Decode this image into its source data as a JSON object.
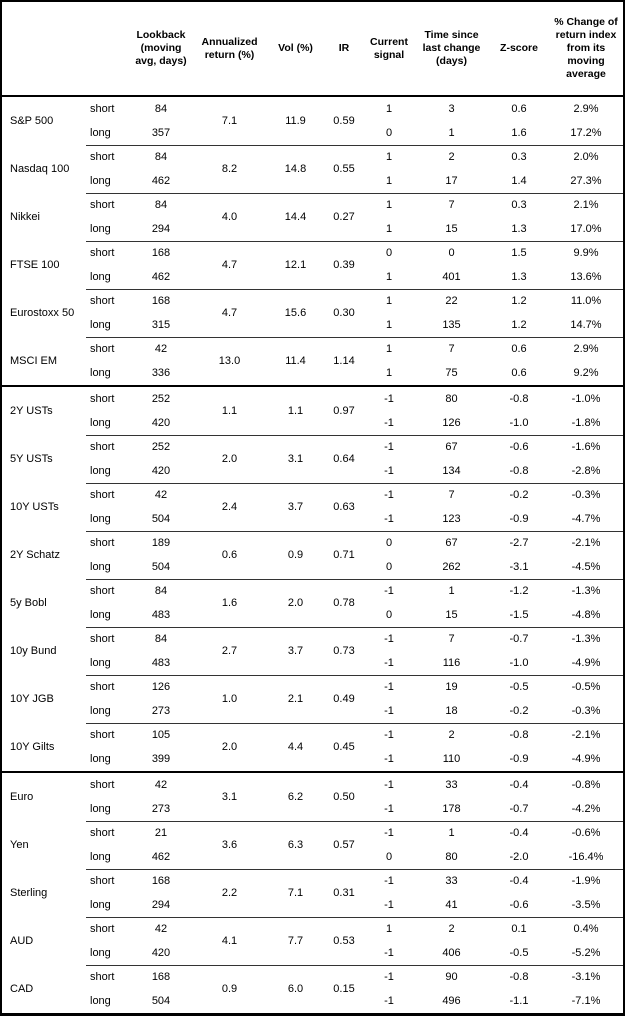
{
  "colors": {
    "border": "#000000",
    "text": "#000000",
    "background": "#ffffff"
  },
  "table": {
    "columns": [
      "",
      "",
      "Lookback (moving avg, days)",
      "Annualized return (%)",
      "Vol (%)",
      "IR",
      "Current signal",
      "Time since last change (days)",
      "Z-score",
      "% Change of return index from its moving average"
    ],
    "row_labels": [
      "short",
      "long"
    ],
    "sections": [
      {
        "id": "equities",
        "groups": [
          {
            "asset": "S&P 500",
            "annualized": "7.1",
            "vol": "11.9",
            "ir": "0.59",
            "rows": [
              {
                "horizon": "short",
                "lookback": "84",
                "signal": "1",
                "time": "3",
                "zscore": "0.6",
                "pct": "2.9%"
              },
              {
                "horizon": "long",
                "lookback": "357",
                "signal": "0",
                "time": "1",
                "zscore": "1.6",
                "pct": "17.2%"
              }
            ]
          },
          {
            "asset": "Nasdaq 100",
            "annualized": "8.2",
            "vol": "14.8",
            "ir": "0.55",
            "rows": [
              {
                "horizon": "short",
                "lookback": "84",
                "signal": "1",
                "time": "2",
                "zscore": "0.3",
                "pct": "2.0%"
              },
              {
                "horizon": "long",
                "lookback": "462",
                "signal": "1",
                "time": "17",
                "zscore": "1.4",
                "pct": "27.3%"
              }
            ]
          },
          {
            "asset": "Nikkei",
            "annualized": "4.0",
            "vol": "14.4",
            "ir": "0.27",
            "rows": [
              {
                "horizon": "short",
                "lookback": "84",
                "signal": "1",
                "time": "7",
                "zscore": "0.3",
                "pct": "2.1%"
              },
              {
                "horizon": "long",
                "lookback": "294",
                "signal": "1",
                "time": "15",
                "zscore": "1.3",
                "pct": "17.0%"
              }
            ]
          },
          {
            "asset": "FTSE 100",
            "annualized": "4.7",
            "vol": "12.1",
            "ir": "0.39",
            "rows": [
              {
                "horizon": "short",
                "lookback": "168",
                "signal": "0",
                "time": "0",
                "zscore": "1.5",
                "pct": "9.9%"
              },
              {
                "horizon": "long",
                "lookback": "462",
                "signal": "1",
                "time": "401",
                "zscore": "1.3",
                "pct": "13.6%"
              }
            ]
          },
          {
            "asset": "Eurostoxx 50",
            "annualized": "4.7",
            "vol": "15.6",
            "ir": "0.30",
            "rows": [
              {
                "horizon": "short",
                "lookback": "168",
                "signal": "1",
                "time": "22",
                "zscore": "1.2",
                "pct": "11.0%"
              },
              {
                "horizon": "long",
                "lookback": "315",
                "signal": "1",
                "time": "135",
                "zscore": "1.2",
                "pct": "14.7%"
              }
            ]
          },
          {
            "asset": "MSCI EM",
            "annualized": "13.0",
            "vol": "11.4",
            "ir": "1.14",
            "rows": [
              {
                "horizon": "short",
                "lookback": "42",
                "signal": "1",
                "time": "7",
                "zscore": "0.6",
                "pct": "2.9%"
              },
              {
                "horizon": "long",
                "lookback": "336",
                "signal": "1",
                "time": "75",
                "zscore": "0.6",
                "pct": "9.2%"
              }
            ]
          }
        ]
      },
      {
        "id": "bonds",
        "groups": [
          {
            "asset": "2Y USTs",
            "annualized": "1.1",
            "vol": "1.1",
            "ir": "0.97",
            "rows": [
              {
                "horizon": "short",
                "lookback": "252",
                "signal": "-1",
                "time": "80",
                "zscore": "-0.8",
                "pct": "-1.0%"
              },
              {
                "horizon": "long",
                "lookback": "420",
                "signal": "-1",
                "time": "126",
                "zscore": "-1.0",
                "pct": "-1.8%"
              }
            ]
          },
          {
            "asset": "5Y USTs",
            "annualized": "2.0",
            "vol": "3.1",
            "ir": "0.64",
            "rows": [
              {
                "horizon": "short",
                "lookback": "252",
                "signal": "-1",
                "time": "67",
                "zscore": "-0.6",
                "pct": "-1.6%"
              },
              {
                "horizon": "long",
                "lookback": "420",
                "signal": "-1",
                "time": "134",
                "zscore": "-0.8",
                "pct": "-2.8%"
              }
            ]
          },
          {
            "asset": "10Y USTs",
            "annualized": "2.4",
            "vol": "3.7",
            "ir": "0.63",
            "rows": [
              {
                "horizon": "short",
                "lookback": "42",
                "signal": "-1",
                "time": "7",
                "zscore": "-0.2",
                "pct": "-0.3%"
              },
              {
                "horizon": "long",
                "lookback": "504",
                "signal": "-1",
                "time": "123",
                "zscore": "-0.9",
                "pct": "-4.7%"
              }
            ]
          },
          {
            "asset": "2Y Schatz",
            "annualized": "0.6",
            "vol": "0.9",
            "ir": "0.71",
            "rows": [
              {
                "horizon": "short",
                "lookback": "189",
                "signal": "0",
                "time": "67",
                "zscore": "-2.7",
                "pct": "-2.1%"
              },
              {
                "horizon": "long",
                "lookback": "504",
                "signal": "0",
                "time": "262",
                "zscore": "-3.1",
                "pct": "-4.5%"
              }
            ]
          },
          {
            "asset": "5y Bobl",
            "annualized": "1.6",
            "vol": "2.0",
            "ir": "0.78",
            "rows": [
              {
                "horizon": "short",
                "lookback": "84",
                "signal": "-1",
                "time": "1",
                "zscore": "-1.2",
                "pct": "-1.3%"
              },
              {
                "horizon": "long",
                "lookback": "483",
                "signal": "0",
                "time": "15",
                "zscore": "-1.5",
                "pct": "-4.8%"
              }
            ]
          },
          {
            "asset": "10y Bund",
            "annualized": "2.7",
            "vol": "3.7",
            "ir": "0.73",
            "rows": [
              {
                "horizon": "short",
                "lookback": "84",
                "signal": "-1",
                "time": "7",
                "zscore": "-0.7",
                "pct": "-1.3%"
              },
              {
                "horizon": "long",
                "lookback": "483",
                "signal": "-1",
                "time": "116",
                "zscore": "-1.0",
                "pct": "-4.9%"
              }
            ]
          },
          {
            "asset": "10Y JGB",
            "annualized": "1.0",
            "vol": "2.1",
            "ir": "0.49",
            "rows": [
              {
                "horizon": "short",
                "lookback": "126",
                "signal": "-1",
                "time": "19",
                "zscore": "-0.5",
                "pct": "-0.5%"
              },
              {
                "horizon": "long",
                "lookback": "273",
                "signal": "-1",
                "time": "18",
                "zscore": "-0.2",
                "pct": "-0.3%"
              }
            ]
          },
          {
            "asset": "10Y Gilts",
            "annualized": "2.0",
            "vol": "4.4",
            "ir": "0.45",
            "rows": [
              {
                "horizon": "short",
                "lookback": "105",
                "signal": "-1",
                "time": "2",
                "zscore": "-0.8",
                "pct": "-2.1%"
              },
              {
                "horizon": "long",
                "lookback": "399",
                "signal": "-1",
                "time": "110",
                "zscore": "-0.9",
                "pct": "-4.9%"
              }
            ]
          }
        ]
      },
      {
        "id": "fx",
        "groups": [
          {
            "asset": "Euro",
            "annualized": "3.1",
            "vol": "6.2",
            "ir": "0.50",
            "rows": [
              {
                "horizon": "short",
                "lookback": "42",
                "signal": "-1",
                "time": "33",
                "zscore": "-0.4",
                "pct": "-0.8%"
              },
              {
                "horizon": "long",
                "lookback": "273",
                "signal": "-1",
                "time": "178",
                "zscore": "-0.7",
                "pct": "-4.2%"
              }
            ]
          },
          {
            "asset": "Yen",
            "annualized": "3.6",
            "vol": "6.3",
            "ir": "0.57",
            "rows": [
              {
                "horizon": "short",
                "lookback": "21",
                "signal": "-1",
                "time": "1",
                "zscore": "-0.4",
                "pct": "-0.6%"
              },
              {
                "horizon": "long",
                "lookback": "462",
                "signal": "0",
                "time": "80",
                "zscore": "-2.0",
                "pct": "-16.4%"
              }
            ]
          },
          {
            "asset": "Sterling",
            "annualized": "2.2",
            "vol": "7.1",
            "ir": "0.31",
            "rows": [
              {
                "horizon": "short",
                "lookback": "168",
                "signal": "-1",
                "time": "33",
                "zscore": "-0.4",
                "pct": "-1.9%"
              },
              {
                "horizon": "long",
                "lookback": "294",
                "signal": "-1",
                "time": "41",
                "zscore": "-0.6",
                "pct": "-3.5%"
              }
            ]
          },
          {
            "asset": "AUD",
            "annualized": "4.1",
            "vol": "7.7",
            "ir": "0.53",
            "rows": [
              {
                "horizon": "short",
                "lookback": "42",
                "signal": "1",
                "time": "2",
                "zscore": "0.1",
                "pct": "0.4%"
              },
              {
                "horizon": "long",
                "lookback": "420",
                "signal": "-1",
                "time": "406",
                "zscore": "-0.5",
                "pct": "-5.2%"
              }
            ]
          },
          {
            "asset": "CAD",
            "annualized": "0.9",
            "vol": "6.0",
            "ir": "0.15",
            "rows": [
              {
                "horizon": "short",
                "lookback": "168",
                "signal": "-1",
                "time": "90",
                "zscore": "-0.8",
                "pct": "-3.1%"
              },
              {
                "horizon": "long",
                "lookback": "504",
                "signal": "-1",
                "time": "496",
                "zscore": "-1.1",
                "pct": "-7.1%"
              }
            ]
          }
        ]
      }
    ]
  }
}
